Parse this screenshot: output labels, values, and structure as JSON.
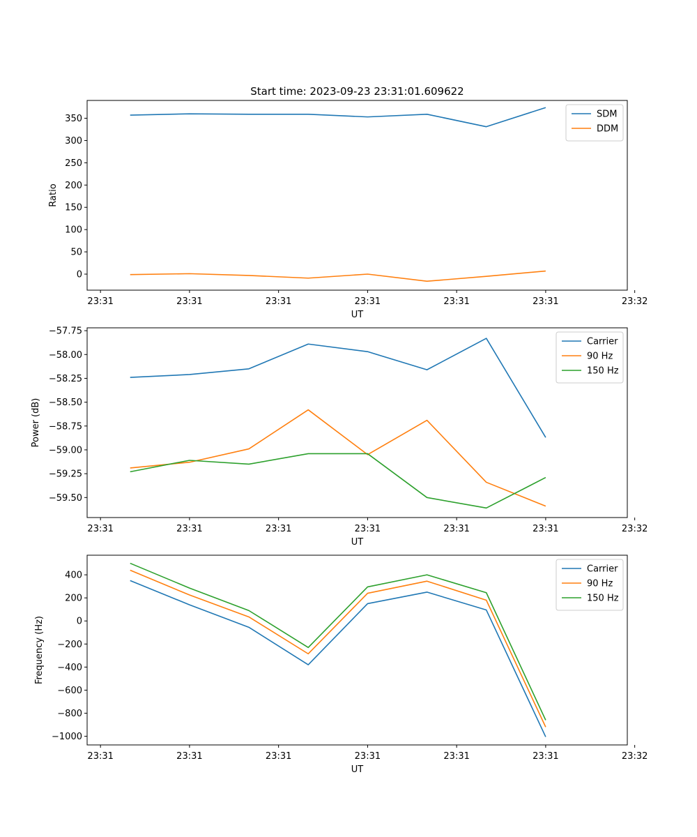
{
  "figure_title": "Start time: 2023-09-23 23:31:01.609622",
  "colors": {
    "blue": "#1f77b4",
    "orange": "#ff7f0e",
    "green": "#2ca02c"
  },
  "chart_data": [
    {
      "type": "line",
      "title": "Start time: 2023-09-23 23:31:01.609622",
      "xlabel": "UT",
      "ylabel": "Ratio",
      "x": [
        1,
        2,
        3,
        4,
        5,
        6,
        7,
        8
      ],
      "xlim": [
        0.275,
        9.375
      ],
      "x_ticks": [
        0.5,
        2,
        3.5,
        5,
        6.5,
        8,
        9.5
      ],
      "x_tick_labels": [
        "23:31",
        "23:31",
        "23:31",
        "23:31",
        "23:31",
        "23:31",
        "23:32"
      ],
      "ylim": [
        -36,
        390
      ],
      "y_ticks": [
        0,
        50,
        100,
        150,
        200,
        250,
        300,
        350
      ],
      "y_tick_labels": [
        "0",
        "50",
        "100",
        "150",
        "200",
        "250",
        "300",
        "350"
      ],
      "legend_position": "top-right",
      "series": [
        {
          "name": "SDM",
          "color": "#1f77b4",
          "values": [
            357,
            360,
            359,
            359,
            353,
            359,
            331,
            374
          ]
        },
        {
          "name": "DDM",
          "color": "#ff7f0e",
          "values": [
            -1,
            1,
            -3,
            -9,
            0,
            -16,
            -5,
            7
          ]
        }
      ]
    },
    {
      "type": "line",
      "xlabel": "UT",
      "ylabel": "Power (dB)",
      "x": [
        1,
        2,
        3,
        4,
        5,
        6,
        7,
        8
      ],
      "xlim": [
        0.275,
        9.375
      ],
      "x_ticks": [
        0.5,
        2,
        3.5,
        5,
        6.5,
        8,
        9.5
      ],
      "x_tick_labels": [
        "23:31",
        "23:31",
        "23:31",
        "23:31",
        "23:31",
        "23:31",
        "23:32"
      ],
      "ylim": [
        -59.71,
        -57.72
      ],
      "y_ticks": [
        -57.75,
        -58.0,
        -58.25,
        -58.5,
        -58.75,
        -59.0,
        -59.25,
        -59.5
      ],
      "y_tick_labels": [
        "−57.75",
        "−58.00",
        "−58.25",
        "−58.50",
        "−58.75",
        "−59.00",
        "−59.25",
        "−59.50"
      ],
      "legend_position": "top-right",
      "series": [
        {
          "name": "Carrier",
          "color": "#1f77b4",
          "values": [
            -58.24,
            -58.21,
            -58.15,
            -57.89,
            -57.97,
            -58.16,
            -57.83,
            -58.87
          ]
        },
        {
          "name": "90 Hz",
          "color": "#ff7f0e",
          "values": [
            -59.19,
            -59.13,
            -58.99,
            -58.58,
            -59.05,
            -58.69,
            -59.34,
            -59.59
          ]
        },
        {
          "name": "150 Hz",
          "color": "#2ca02c",
          "values": [
            -59.23,
            -59.11,
            -59.15,
            -59.04,
            -59.04,
            -59.5,
            -59.61,
            -59.29
          ]
        }
      ]
    },
    {
      "type": "line",
      "xlabel": "UT",
      "ylabel": "Frequency (Hz)",
      "x": [
        1,
        2,
        3,
        4,
        5,
        6,
        7,
        8
      ],
      "xlim": [
        0.275,
        9.375
      ],
      "x_ticks": [
        0.5,
        2,
        3.5,
        5,
        6.5,
        8,
        9.5
      ],
      "x_tick_labels": [
        "23:31",
        "23:31",
        "23:31",
        "23:31",
        "23:31",
        "23:31",
        "23:32"
      ],
      "ylim": [
        -1075,
        570
      ],
      "y_ticks": [
        400,
        200,
        0,
        -200,
        -400,
        -600,
        -800,
        -1000
      ],
      "y_tick_labels": [
        "400",
        "200",
        "0",
        "−200",
        "−400",
        "−600",
        "−800",
        "−1000"
      ],
      "legend_position": "top-right",
      "series": [
        {
          "name": "Carrier",
          "color": "#1f77b4",
          "values": [
            350,
            140,
            -55,
            -380,
            150,
            250,
            95,
            -1005
          ]
        },
        {
          "name": "90 Hz",
          "color": "#ff7f0e",
          "values": [
            440,
            225,
            35,
            -285,
            240,
            345,
            180,
            -920
          ]
        },
        {
          "name": "150 Hz",
          "color": "#2ca02c",
          "values": [
            500,
            285,
            90,
            -230,
            295,
            400,
            245,
            -860
          ]
        }
      ]
    }
  ]
}
